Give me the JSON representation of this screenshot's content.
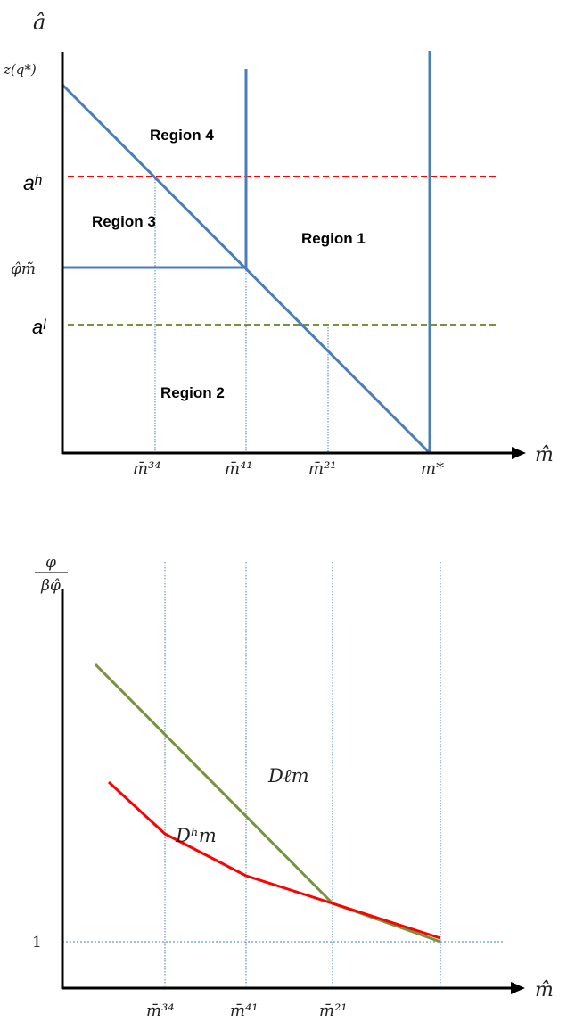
{
  "top_diagram": {
    "y_axis_label": "â",
    "x_axis_label": "m̂",
    "y_ticks": {
      "z": "z(q*)",
      "ah": "aʰ",
      "phim": "φ̂m̃",
      "al": "aˡ"
    },
    "x_ticks": {
      "m34": "m̄³⁴",
      "m41": "m̄⁴¹",
      "m21": "m̄²¹",
      "mstar": "m*"
    },
    "regions": {
      "r1": "Region 1",
      "r2": "Region 2",
      "r3": "Region 3",
      "r4": "Region 4"
    },
    "colors": {
      "boundary": "#4a7ebb",
      "ah_line": "#ff0000",
      "al_line": "#77933c",
      "axis": "#000000"
    }
  },
  "bottom_diagram": {
    "y_axis_label_num": "φ",
    "y_axis_label_den": "βφ̂",
    "x_axis_label": "m̂",
    "y_tick_one": "1",
    "x_ticks": {
      "m34": "m̄³⁴",
      "m41": "m̄⁴¹",
      "m21": "m̄²¹"
    },
    "curve_labels": {
      "dl": "Dℓm",
      "dh": "Dʰm"
    },
    "colors": {
      "dl_curve": "#77933c",
      "dh_curve": "#ff0000",
      "gridline": "#4a7ebb",
      "axis": "#000000"
    }
  }
}
